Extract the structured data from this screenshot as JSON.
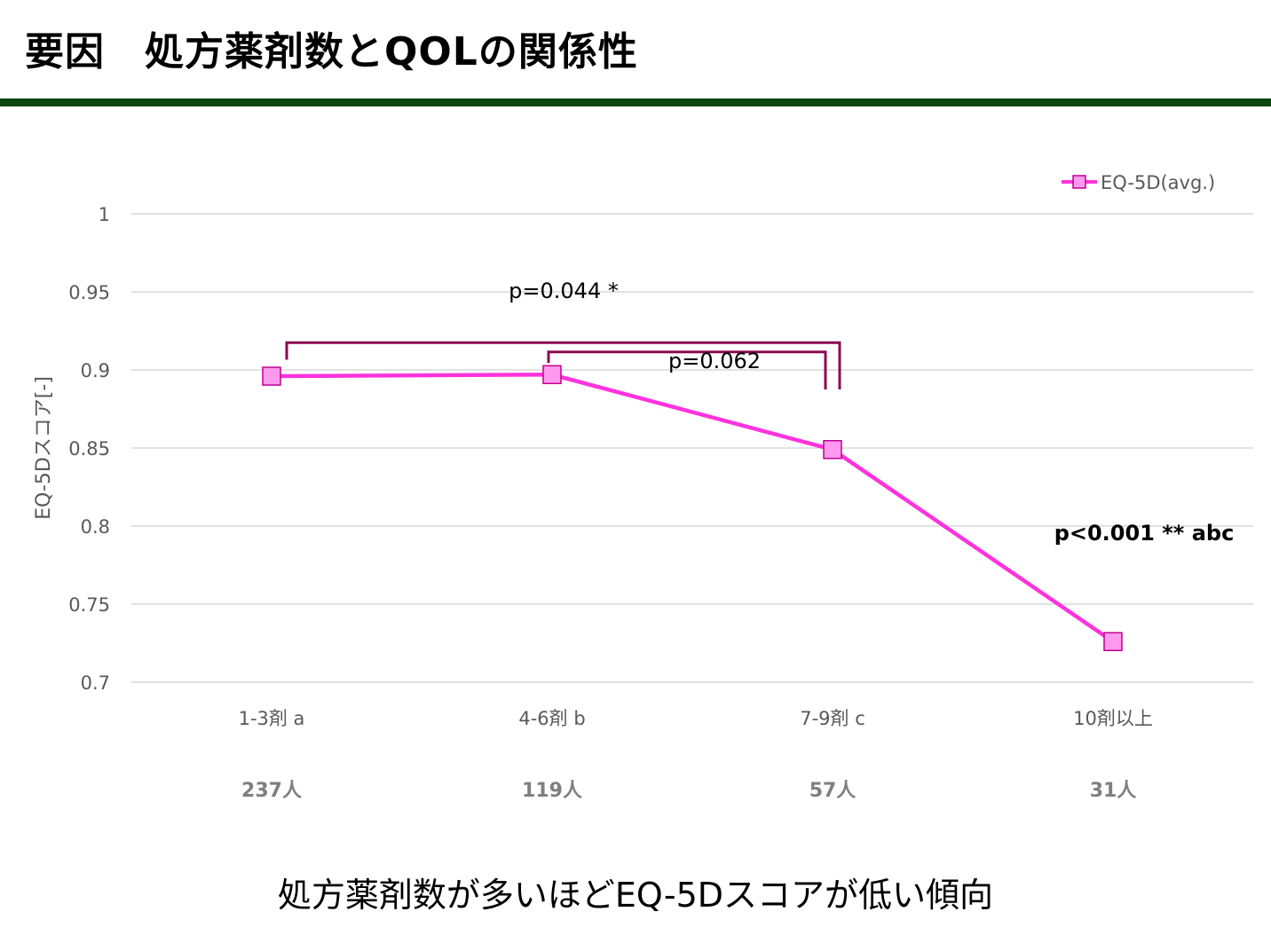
{
  "slide": {
    "title": "要因　処方薬剤数とQOLの関係性",
    "caption": "処方薬剤数が多いほどEQ-5Dスコアが低い傾向"
  },
  "chart_data": {
    "type": "line",
    "categories": [
      "1-3剤 a",
      "4-6剤 b",
      "7-9剤 c",
      "10剤以上"
    ],
    "sample_sizes": [
      "237人",
      "119人",
      "57人",
      "31人"
    ],
    "series": [
      {
        "name": "EQ-5D(avg.)",
        "values": [
          0.896,
          0.897,
          0.849,
          0.726
        ],
        "color": "#ff33dd",
        "marker_fill": "#ff99ee",
        "marker_stroke": "#c00090"
      }
    ],
    "ylabel": "EQ-5Dスコア[-]",
    "xlabel": "",
    "ylim": [
      0.7,
      1.0
    ],
    "yticks": [
      0.7,
      0.75,
      0.8,
      0.85,
      0.9,
      0.95,
      1
    ],
    "ytick_labels": [
      "0.7",
      "0.75",
      "0.8",
      "0.85",
      "0.9",
      "0.95",
      "1"
    ],
    "grid": true,
    "legend_position": "top-right",
    "annotations": {
      "p_1_3": "p=0.044 *",
      "p_2_3": "p=0.062",
      "p_overall": "p<0.001 ** abc",
      "bracket_color": "#8b0a50"
    }
  }
}
